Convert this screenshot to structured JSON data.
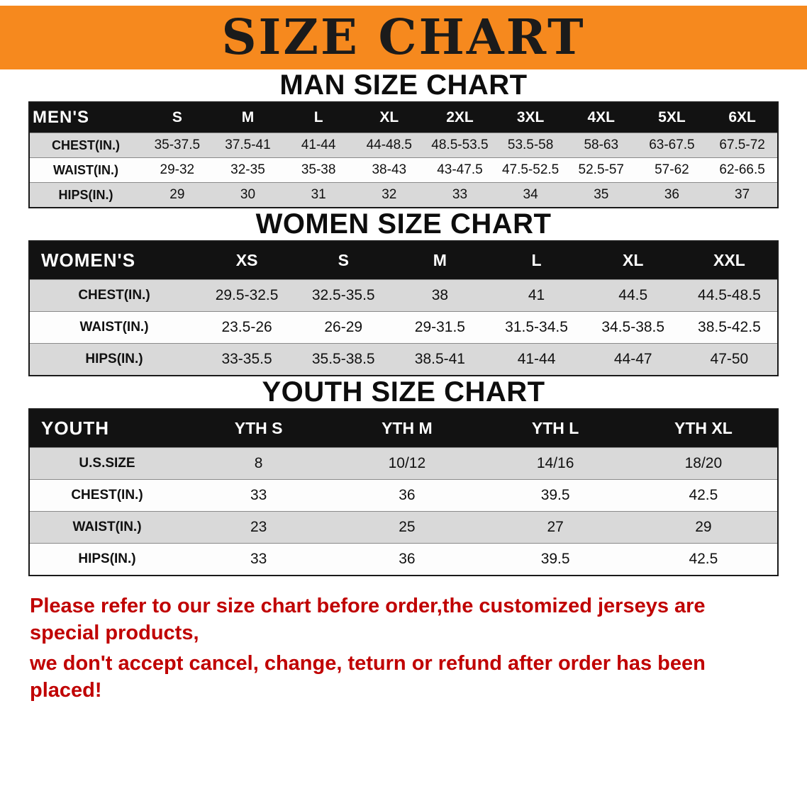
{
  "banner": {
    "title": "SIZE CHART",
    "bg_color": "#F6891E"
  },
  "sections": [
    {
      "heading": "MAN SIZE CHART",
      "table": {
        "header": [
          "MEN'S",
          "S",
          "M",
          "L",
          "XL",
          "2XL",
          "3XL",
          "4XL",
          "5XL",
          "6XL"
        ],
        "rows": [
          [
            "CHEST(IN.)",
            "35-37.5",
            "37.5-41",
            "41-44",
            "44-48.5",
            "48.5-53.5",
            "53.5-58",
            "58-63",
            "63-67.5",
            "67.5-72"
          ],
          [
            "WAIST(IN.)",
            "29-32",
            "32-35",
            "35-38",
            "38-43",
            "43-47.5",
            "47.5-52.5",
            "52.5-57",
            "57-62",
            "62-66.5"
          ],
          [
            "HIPS(IN.)",
            "29",
            "30",
            "31",
            "32",
            "33",
            "34",
            "35",
            "36",
            "37"
          ]
        ]
      }
    },
    {
      "heading": "WOMEN SIZE CHART",
      "table": {
        "header": [
          "WOMEN'S",
          "XS",
          "S",
          "M",
          "L",
          "XL",
          "XXL"
        ],
        "rows": [
          [
            "CHEST(IN.)",
            "29.5-32.5",
            "32.5-35.5",
            "38",
            "41",
            "44.5",
            "44.5-48.5"
          ],
          [
            "WAIST(IN.)",
            "23.5-26",
            "26-29",
            "29-31.5",
            "31.5-34.5",
            "34.5-38.5",
            "38.5-42.5"
          ],
          [
            "HIPS(IN.)",
            "33-35.5",
            "35.5-38.5",
            "38.5-41",
            "41-44",
            "44-47",
            "47-50"
          ]
        ]
      }
    },
    {
      "heading": "YOUTH SIZE CHART",
      "table": {
        "header": [
          "YOUTH",
          "YTH S",
          "YTH M",
          "YTH L",
          "YTH XL"
        ],
        "rows": [
          [
            "U.S.SIZE",
            "8",
            "10/12",
            "14/16",
            "18/20"
          ],
          [
            "CHEST(IN.)",
            "33",
            "36",
            "39.5",
            "42.5"
          ],
          [
            "WAIST(IN.)",
            "23",
            "25",
            "27",
            "29"
          ],
          [
            "HIPS(IN.)",
            "33",
            "36",
            "39.5",
            "42.5"
          ]
        ]
      }
    }
  ],
  "disclaimer": {
    "color": "#c00000",
    "lines": [
      "Please refer to our size chart before order,the customized jerseys are special products,",
      "we don't accept cancel, change, teturn or refund after order has been placed!"
    ]
  }
}
